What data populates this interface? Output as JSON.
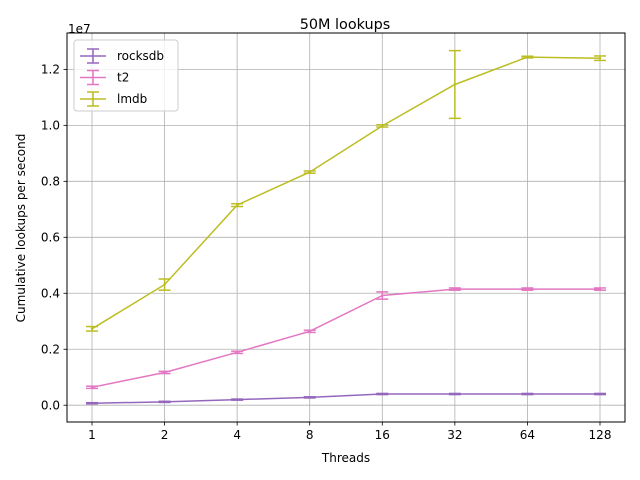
{
  "chart_data": {
    "type": "line",
    "title": "50M lookups",
    "xlabel": "Threads",
    "ylabel": "Cumulative lookups per second",
    "y_offset_label": "1e7",
    "x": [
      1,
      2,
      4,
      8,
      16,
      32,
      64,
      128
    ],
    "x_tick_labels": [
      "1",
      "2",
      "4",
      "8",
      "16",
      "32",
      "64",
      "128"
    ],
    "x_scale": "log2",
    "y_ticks": [
      0.0,
      0.2,
      0.4,
      0.6,
      0.8,
      1.0,
      1.2
    ],
    "y_tick_labels": [
      "0.0",
      "0.2",
      "0.4",
      "0.6",
      "0.8",
      "1.0",
      "1.2"
    ],
    "y_units_multiplier": 10000000,
    "ylim": [
      -0.06,
      1.33
    ],
    "grid": true,
    "legend_position": "top-left",
    "series": [
      {
        "name": "rocksdb",
        "color": "#9467bd",
        "values": [
          0.007,
          0.012,
          0.02,
          0.028,
          0.04,
          0.04,
          0.04,
          0.04
        ],
        "errors": [
          0.002,
          0.002,
          0.002,
          0.002,
          0.002,
          0.002,
          0.002,
          0.002
        ]
      },
      {
        "name": "t2",
        "color": "#e377c2",
        "values": [
          0.064,
          0.117,
          0.189,
          0.264,
          0.392,
          0.415,
          0.415,
          0.415
        ],
        "errors": [
          0.004,
          0.004,
          0.004,
          0.004,
          0.013,
          0.004,
          0.004,
          0.004
        ]
      },
      {
        "name": "lmdb",
        "color": "#bcbd22",
        "values": [
          0.273,
          0.431,
          0.715,
          0.833,
          0.998,
          1.146,
          1.244,
          1.24
        ],
        "errors": [
          0.008,
          0.02,
          0.005,
          0.004,
          0.004,
          0.121,
          0.003,
          0.008
        ]
      }
    ]
  }
}
